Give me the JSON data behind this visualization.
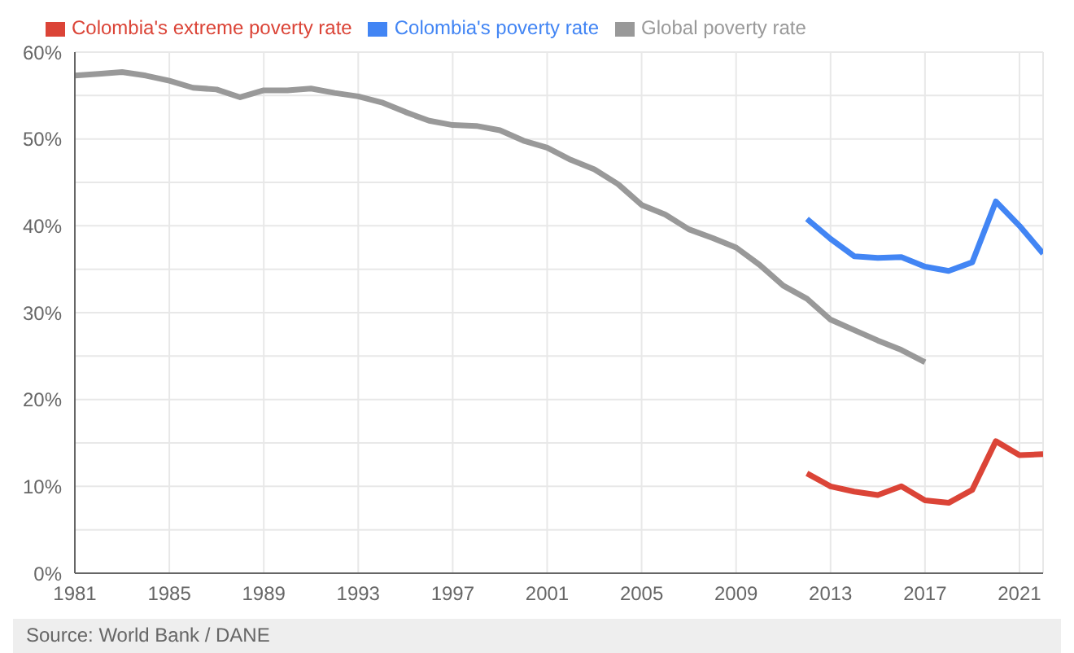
{
  "chart_data": {
    "type": "line",
    "x": [
      1981,
      1982,
      1983,
      1984,
      1985,
      1986,
      1987,
      1988,
      1989,
      1990,
      1991,
      1992,
      1993,
      1994,
      1995,
      1996,
      1997,
      1998,
      1999,
      2000,
      2001,
      2002,
      2003,
      2004,
      2005,
      2006,
      2007,
      2008,
      2009,
      2010,
      2011,
      2012,
      2013,
      2014,
      2015,
      2016,
      2017,
      2018,
      2019,
      2020,
      2021,
      2022
    ],
    "series": [
      {
        "name": "Colombia's poverty rate",
        "color": "#4285f4",
        "values": [
          null,
          null,
          null,
          null,
          null,
          null,
          null,
          null,
          null,
          null,
          null,
          null,
          null,
          null,
          null,
          null,
          null,
          null,
          null,
          null,
          null,
          null,
          null,
          null,
          null,
          null,
          null,
          null,
          null,
          null,
          null,
          40.8,
          38.5,
          36.5,
          36.3,
          36.4,
          35.3,
          34.8,
          35.8,
          42.8,
          40.0,
          36.8
        ]
      },
      {
        "name": "Colombia's extreme poverty rate",
        "color": "#db4437",
        "values": [
          null,
          null,
          null,
          null,
          null,
          null,
          null,
          null,
          null,
          null,
          null,
          null,
          null,
          null,
          null,
          null,
          null,
          null,
          null,
          null,
          null,
          null,
          null,
          null,
          null,
          null,
          null,
          null,
          null,
          null,
          null,
          11.5,
          10.0,
          9.4,
          9.0,
          10.0,
          8.4,
          8.1,
          9.6,
          15.2,
          13.6,
          13.7
        ]
      },
      {
        "name": "Global poverty rate",
        "color": "#999999",
        "values": [
          57.3,
          57.5,
          57.7,
          57.3,
          56.7,
          55.9,
          55.7,
          54.8,
          55.6,
          55.6,
          55.8,
          55.3,
          54.9,
          54.2,
          53.1,
          52.1,
          51.6,
          51.5,
          51.0,
          49.8,
          49.0,
          47.6,
          46.5,
          44.8,
          42.4,
          41.3,
          39.6,
          38.6,
          37.5,
          35.5,
          33.1,
          31.6,
          29.2,
          28.0,
          26.8,
          25.7,
          24.3,
          null,
          null,
          null,
          null,
          null
        ]
      }
    ],
    "xlim": [
      1981,
      2022
    ],
    "xticks": [
      1981,
      1985,
      1989,
      1993,
      1997,
      2001,
      2005,
      2009,
      2013,
      2017,
      2021
    ],
    "ylim": [
      0,
      60
    ],
    "yticks": [
      {
        "value": 0,
        "label": "0%"
      },
      {
        "value": 5,
        "label": null
      },
      {
        "value": 10,
        "label": "10%"
      },
      {
        "value": 15,
        "label": null
      },
      {
        "value": 20,
        "label": "20%"
      },
      {
        "value": 25,
        "label": null
      },
      {
        "value": 30,
        "label": "30%"
      },
      {
        "value": 35,
        "label": null
      },
      {
        "value": 40,
        "label": "40%"
      },
      {
        "value": 45,
        "label": null
      },
      {
        "value": 50,
        "label": "50%"
      },
      {
        "value": 55,
        "label": null
      },
      {
        "value": 60,
        "label": "60%"
      }
    ],
    "grid": true,
    "legend": "top left",
    "marker": "none",
    "line_style": "solid",
    "annotations": [
      "Source: World Bank / DANE"
    ]
  }
}
